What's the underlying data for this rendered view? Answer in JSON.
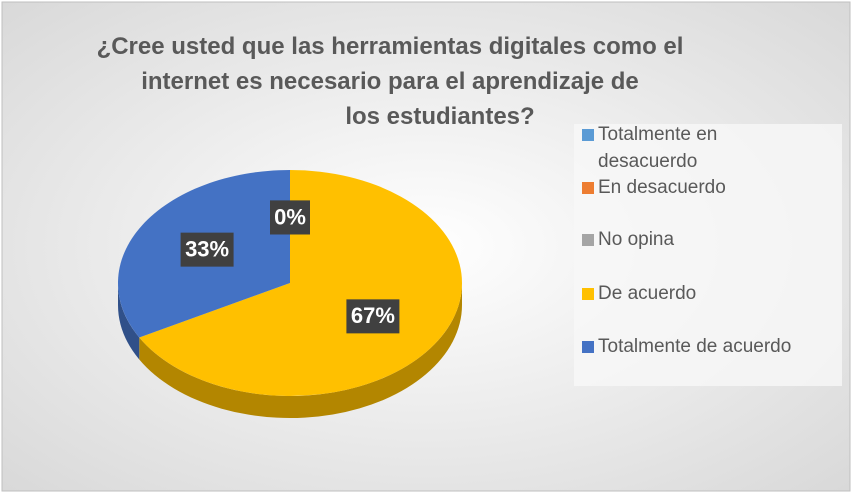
{
  "chart_data": {
    "type": "pie",
    "title": "¿Cree usted que las herramientas digitales como el internet es necesario para el aprendizaje de los estudiantes?",
    "categories": [
      "Totalmente en desacuerdo",
      "En desacuerdo",
      "No opina",
      "De acuerdo",
      "Totalmente de acuerdo"
    ],
    "values": [
      0,
      0,
      0,
      67,
      33
    ],
    "value_labels": [
      "0%",
      "0%",
      "0%",
      "67%",
      "33%"
    ],
    "colors": [
      "#5b9bd5",
      "#ed7d31",
      "#a5a5a5",
      "#ffc000",
      "#4472c4"
    ],
    "legend": "right"
  }
}
